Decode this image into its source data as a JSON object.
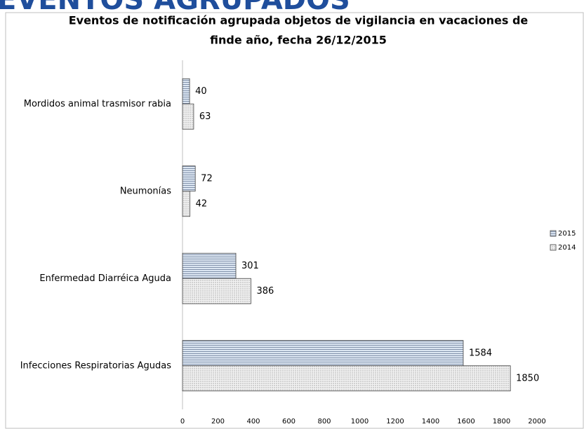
{
  "slide_title": "EVENTOS AGRUPADOS",
  "chart_data": {
    "type": "hbar",
    "title": [
      "Eventos de notificación agrupada objetos de vigilancia en vacaciones de",
      "finde año,  fecha 26/12/2015"
    ],
    "categories": [
      "Mordidos animal trasmisor rabia",
      "Neumonías",
      "Enfermedad Diarréica Aguda",
      "Infecciones Respiratorias Agudas"
    ],
    "series": [
      {
        "name": "2015",
        "color": "#dce6f2",
        "pattern": "lines",
        "values": [
          40,
          72,
          301,
          1584
        ]
      },
      {
        "name": "2014",
        "color": "#f2f2f2",
        "pattern": "dots",
        "values": [
          63,
          42,
          386,
          1850
        ]
      }
    ],
    "xlim": [
      0,
      2000
    ],
    "xticks": [
      0,
      200,
      400,
      600,
      800,
      1000,
      1200,
      1400,
      1600,
      1800,
      2000
    ],
    "grid": false,
    "legend": "right"
  }
}
